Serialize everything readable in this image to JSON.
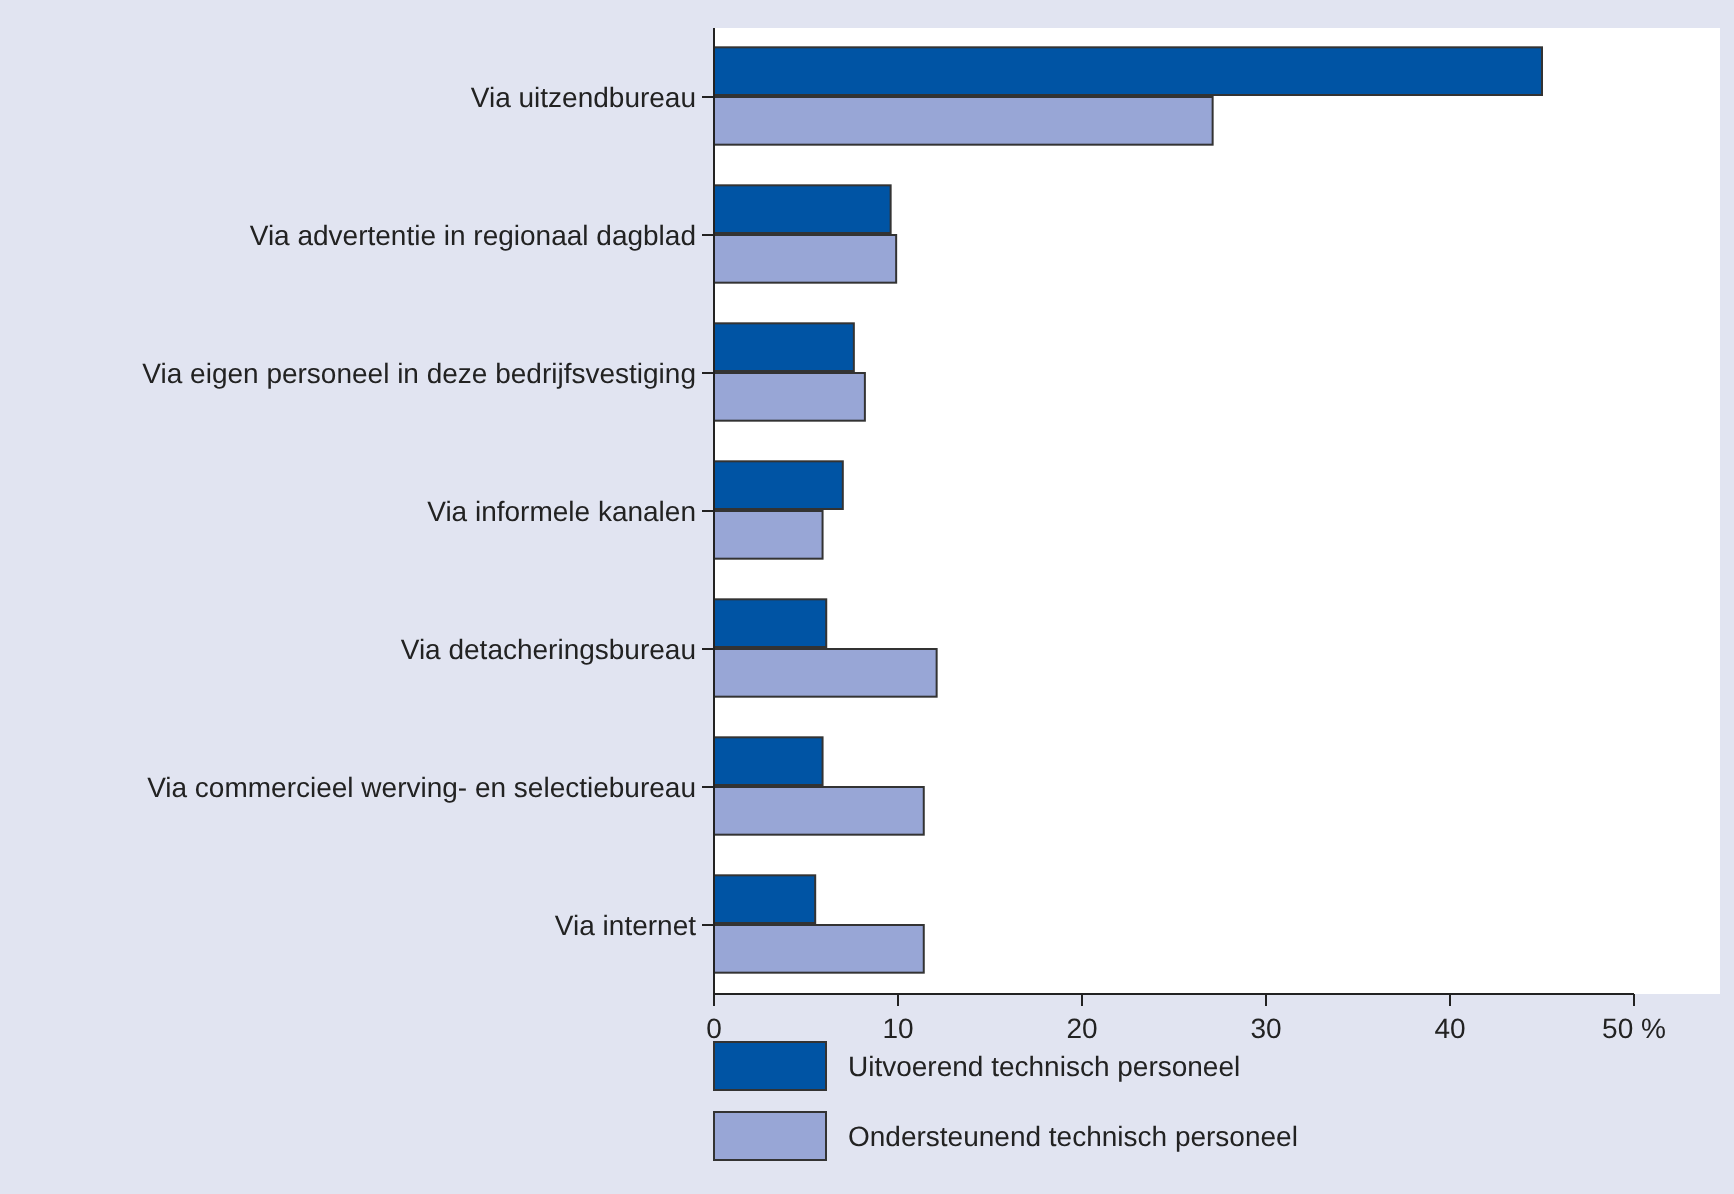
{
  "chart_data": {
    "type": "bar",
    "orientation": "horizontal",
    "categories": [
      "Via uitzendbureau",
      "Via advertentie in regionaal dagblad",
      "Via eigen personeel in deze bedrijfsvestiging",
      "Via informele kanalen",
      "Via detacheringsbureau",
      "Via commercieel werving- en selectiebureau",
      "Via internet"
    ],
    "series": [
      {
        "name": "Uitvoerend technisch personeel",
        "color": "#0054a4",
        "values": [
          45,
          9.6,
          7.6,
          7.0,
          6.1,
          5.9,
          5.5
        ]
      },
      {
        "name": "Ondersteunend technisch personeel",
        "color": "#98a6d6",
        "values": [
          27.1,
          9.9,
          8.2,
          5.9,
          12.1,
          11.4,
          11.4
        ]
      }
    ],
    "xlim": [
      0,
      50
    ],
    "xticks": [
      0,
      10,
      20,
      30,
      40,
      {
        "value": 50,
        "label": "50 %"
      }
    ],
    "grid": false,
    "legend": "bottom"
  }
}
